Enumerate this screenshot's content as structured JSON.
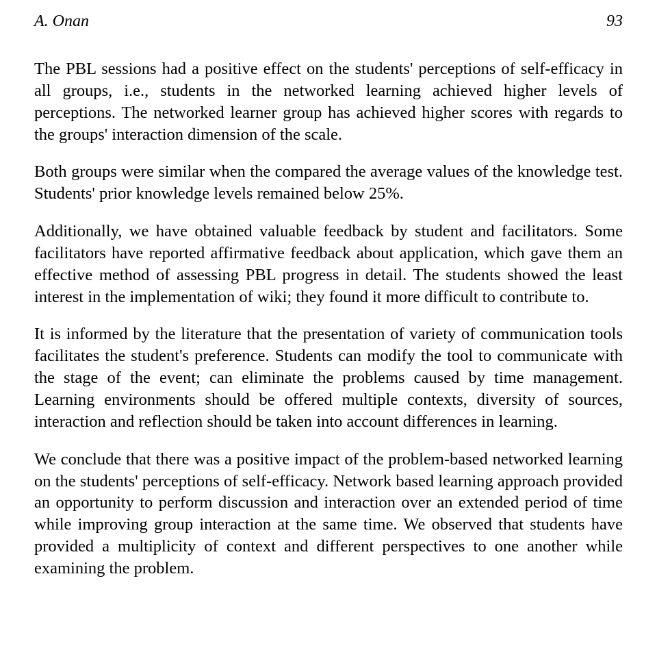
{
  "header": {
    "author": "A. Onan",
    "pageNumber": "93"
  },
  "paragraphs": {
    "p1": "The PBL sessions had a positive effect on the students' perceptions of self-efficacy in all groups, i.e., students in the networked learning achieved higher levels of perceptions. The networked learner group has achieved higher scores with regards to the groups' interaction dimension of the scale.",
    "p2": "Both groups were similar when the compared the average values of the knowledge test. Students' prior knowledge levels remained below 25%.",
    "p3": "Additionally, we have obtained valuable feedback by student and facilitators. Some facilitators have reported affirmative feedback about application, which gave them an effective method of assessing PBL progress in detail. The students showed the least interest in the implementation of wiki; they found it more difficult to contribute to.",
    "p4": "It is informed by the literature that the presentation of variety of communication tools facilitates the student's preference. Students can modify the tool to communicate with the stage of the event; can eliminate the problems caused by time management. Learning environments should be offered multiple contexts, diversity of sources, interaction and reflection should be taken into account differences in learning.",
    "p5": "We conclude that there was a positive impact of the problem-based networked learning on the students' perceptions of self-efficacy. Network based learning approach provided an opportunity to perform discussion and interaction over an extended period of time while improving group interaction at the same time. We observed that students have provided a multiplicity of context and different perspectives to one another while examining the problem."
  },
  "styles": {
    "backgroundColor": "#ffffff",
    "textColor": "#000000",
    "fontFamily": "Garamond, serif",
    "bodyFontSize": 24.5,
    "headerFontSize": 24,
    "lineHeight": 1.3
  }
}
